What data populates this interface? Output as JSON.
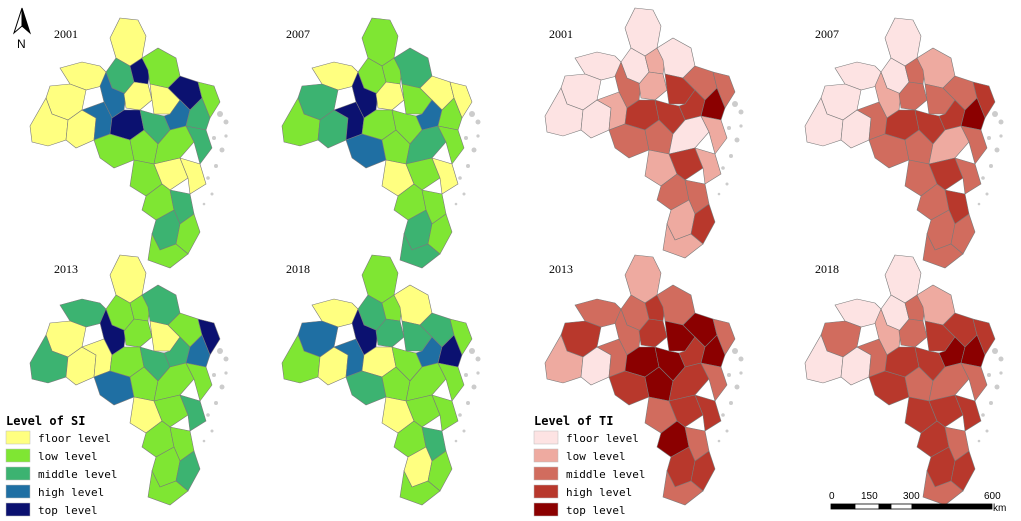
{
  "north": {
    "label": "N"
  },
  "legend_si": {
    "title": "Level of SI",
    "items": [
      {
        "label": "floor level",
        "color": "#ffff80"
      },
      {
        "label": "low level",
        "color": "#7fe633"
      },
      {
        "label": "middle level",
        "color": "#3cb371"
      },
      {
        "label": "high level",
        "color": "#1f6fa3"
      },
      {
        "label": "top level",
        "color": "#0b1170"
      }
    ]
  },
  "legend_ti": {
    "title": "Level of TI",
    "items": [
      {
        "label": "floor level",
        "color": "#fde3e3"
      },
      {
        "label": "low level",
        "color": "#eeaaa0"
      },
      {
        "label": "middle level",
        "color": "#d16c5e"
      },
      {
        "label": "high level",
        "color": "#b8382c"
      },
      {
        "label": "top level",
        "color": "#8b0000"
      }
    ]
  },
  "scale_bar": {
    "ticks": [
      "0",
      "150",
      "300",
      "600"
    ],
    "unit": "km"
  },
  "maps": [
    {
      "year": "2001",
      "index": "SI",
      "levels": [
        0,
        2,
        0,
        0,
        3,
        4,
        1,
        0,
        0,
        4,
        3,
        1,
        2,
        0,
        0,
        3,
        4,
        2,
        1,
        1,
        1,
        2,
        1,
        0,
        0,
        1,
        2,
        2,
        1,
        1
      ]
    },
    {
      "year": "2007",
      "index": "SI",
      "levels": [
        1,
        1,
        0,
        2,
        4,
        1,
        2,
        0,
        1,
        0,
        3,
        0,
        1,
        1,
        2,
        4,
        1,
        1,
        3,
        1,
        2,
        1,
        0,
        1,
        0,
        1,
        1,
        2,
        1,
        2
      ]
    },
    {
      "year": "2013",
      "index": "SI",
      "levels": [
        0,
        1,
        2,
        0,
        4,
        1,
        2,
        1,
        0,
        1,
        2,
        4,
        3,
        2,
        0,
        0,
        1,
        2,
        3,
        1,
        1,
        1,
        0,
        1,
        2,
        1,
        1,
        1,
        2,
        1
      ]
    },
    {
      "year": "2018",
      "index": "SI",
      "levels": [
        1,
        2,
        0,
        3,
        4,
        1,
        0,
        2,
        2,
        2,
        3,
        1,
        4,
        1,
        0,
        3,
        0,
        1,
        2,
        1,
        1,
        1,
        0,
        1,
        1,
        1,
        2,
        0,
        1,
        1
      ]
    },
    {
      "year": "2001",
      "index": "TI",
      "levels": [
        0,
        0,
        0,
        0,
        2,
        1,
        0,
        1,
        3,
        2,
        3,
        2,
        4,
        0,
        0,
        1,
        3,
        3,
        2,
        2,
        0,
        1,
        1,
        3,
        1,
        2,
        2,
        1,
        3,
        1
      ]
    },
    {
      "year": "2007",
      "index": "TI",
      "levels": [
        0,
        0,
        0,
        0,
        1,
        2,
        1,
        2,
        2,
        2,
        3,
        3,
        4,
        0,
        0,
        2,
        3,
        3,
        2,
        2,
        1,
        2,
        2,
        3,
        2,
        2,
        3,
        2,
        2,
        2
      ]
    },
    {
      "year": "2013",
      "index": "TI",
      "levels": [
        1,
        2,
        2,
        3,
        2,
        3,
        2,
        3,
        4,
        4,
        3,
        2,
        4,
        1,
        0,
        2,
        4,
        4,
        3,
        4,
        3,
        2,
        2,
        3,
        3,
        4,
        2,
        3,
        3,
        2
      ]
    },
    {
      "year": "2018",
      "index": "TI",
      "levels": [
        0,
        0,
        0,
        2,
        1,
        2,
        1,
        2,
        3,
        3,
        4,
        3,
        4,
        0,
        0,
        2,
        3,
        3,
        3,
        2,
        2,
        2,
        3,
        3,
        3,
        3,
        2,
        3,
        3,
        2
      ]
    }
  ]
}
